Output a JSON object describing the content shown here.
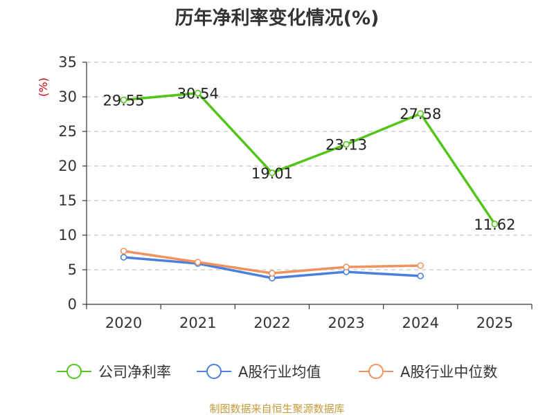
{
  "chart_data": {
    "type": "line",
    "title": "历年净利率变化情况(%)",
    "ylabel": "(%)",
    "xlabel": "",
    "categories": [
      "2020",
      "2021",
      "2022",
      "2023",
      "2024",
      "2025"
    ],
    "ylim": [
      0,
      35
    ],
    "yticks": [
      0,
      5,
      10,
      15,
      20,
      25,
      30,
      35
    ],
    "grid": true,
    "legend_position": "bottom",
    "series": [
      {
        "name": "公司净利率",
        "color": "#52c41a",
        "values": [
          29.55,
          30.54,
          19.01,
          23.13,
          27.58,
          11.62
        ],
        "labels": [
          "29.55",
          "30.54",
          "19.01",
          "23.13",
          "27.58",
          "11.62"
        ]
      },
      {
        "name": "A股行业均值",
        "color": "#4a7fdc",
        "values": [
          6.8,
          5.9,
          3.8,
          4.7,
          4.1,
          null
        ]
      },
      {
        "name": "A股行业中位数",
        "color": "#f0915e",
        "values": [
          7.7,
          6.1,
          4.5,
          5.4,
          5.6,
          null
        ]
      }
    ]
  },
  "source_text": "制图数据来自恒生聚源数据库"
}
